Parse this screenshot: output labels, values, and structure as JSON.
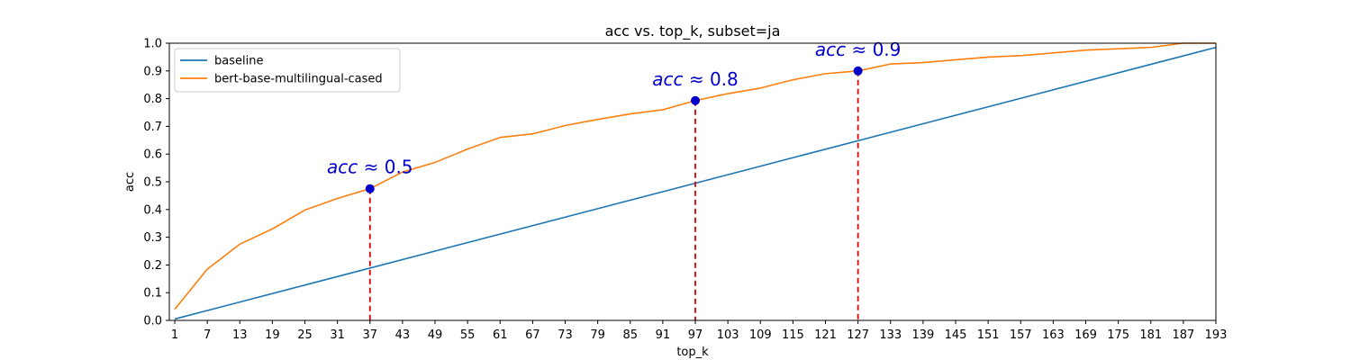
{
  "chart_data": {
    "type": "line",
    "title": "acc vs. top_k, subset=ja",
    "xlabel": "top_k",
    "ylabel": "acc",
    "xlim": [
      0,
      193
    ],
    "ylim": [
      0.0,
      1.0
    ],
    "xticks": [
      1,
      7,
      13,
      19,
      25,
      31,
      37,
      43,
      49,
      55,
      61,
      67,
      73,
      79,
      85,
      91,
      97,
      103,
      109,
      115,
      121,
      127,
      133,
      139,
      145,
      151,
      157,
      163,
      169,
      175,
      181,
      187,
      193
    ],
    "yticks": [
      0.0,
      0.1,
      0.2,
      0.3,
      0.4,
      0.5,
      0.6,
      0.7,
      0.8,
      0.9,
      1.0
    ],
    "ytick_labels": [
      "0.0",
      "0.1",
      "0.2",
      "0.3",
      "0.4",
      "0.5",
      "0.6",
      "0.7",
      "0.8",
      "0.9",
      "1.0"
    ],
    "grid": false,
    "legend_position": "top-left",
    "series": [
      {
        "name": "baseline",
        "color": "#1f77b4",
        "x": [
          1,
          193
        ],
        "y": [
          0.005,
          0.985
        ]
      },
      {
        "name": "bert-base-multilingual-cased",
        "color": "#ff7f0e",
        "x": [
          1,
          7,
          13,
          19,
          25,
          31,
          37,
          43,
          49,
          55,
          61,
          67,
          73,
          79,
          85,
          91,
          97,
          103,
          109,
          115,
          121,
          127,
          133,
          139,
          145,
          151,
          157,
          163,
          169,
          175,
          181,
          187,
          193
        ],
        "y": [
          0.04,
          0.185,
          0.275,
          0.33,
          0.398,
          0.44,
          0.475,
          0.535,
          0.57,
          0.618,
          0.66,
          0.673,
          0.703,
          0.725,
          0.745,
          0.76,
          0.793,
          0.818,
          0.838,
          0.868,
          0.89,
          0.9,
          0.925,
          0.93,
          0.94,
          0.95,
          0.955,
          0.965,
          0.975,
          0.98,
          0.985,
          1.0,
          1.0
        ]
      }
    ],
    "annotations": [
      {
        "x": 37,
        "y": 0.475,
        "label_math": "acc",
        "label_rest": " ≈ 0.5"
      },
      {
        "x": 97,
        "y": 0.793,
        "label_math": "acc",
        "label_rest": " ≈ 0.8"
      },
      {
        "x": 127,
        "y": 0.9,
        "label_math": "acc",
        "label_rest": " ≈ 0.9"
      }
    ],
    "annotation_style": {
      "marker_color": "#0000cc",
      "text_color": "#0000cc",
      "vline_color": "#dd0000"
    }
  }
}
